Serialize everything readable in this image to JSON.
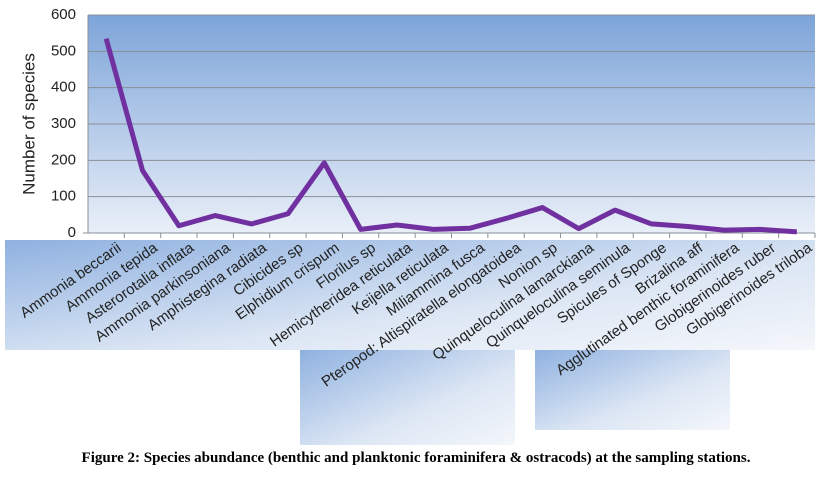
{
  "chart_data": {
    "type": "line",
    "y_label": "Number of species",
    "caption": "Figure 2: Species abundance (benthic and planktonic foraminifera & ostracods) at the sampling stations.",
    "categories": [
      "Ammonia beccarii",
      "Ammonia tepida",
      "Asterorotalia inflata",
      "Ammonia parkinsoniana",
      "Amphistegina radiata",
      "Cibicides sp",
      "Elphidium crispum",
      "Florilus sp",
      "Hemicytherideа reticulata",
      "Keijella reticulata",
      "Miliammina fusca",
      "Pteropod: Altispiratella elongatoidea",
      "Nonion sp",
      "Quinqueloculina lamarckiana",
      "Quinqueloculina seminula",
      "Spicules of Sponge",
      "Brizalina aff",
      "Agglutinated benthic foraminifera",
      "Globigerinoides ruber",
      "Globigerinoides triloba"
    ],
    "values": [
      535,
      172,
      20,
      48,
      25,
      53,
      193,
      10,
      22,
      10,
      13,
      40,
      70,
      12,
      63,
      25,
      18,
      8,
      10,
      3
    ],
    "color": "#7030a0",
    "ylim": [
      0,
      600
    ],
    "yticks": [
      0,
      100,
      200,
      300,
      400,
      500,
      600
    ],
    "grid": true
  }
}
